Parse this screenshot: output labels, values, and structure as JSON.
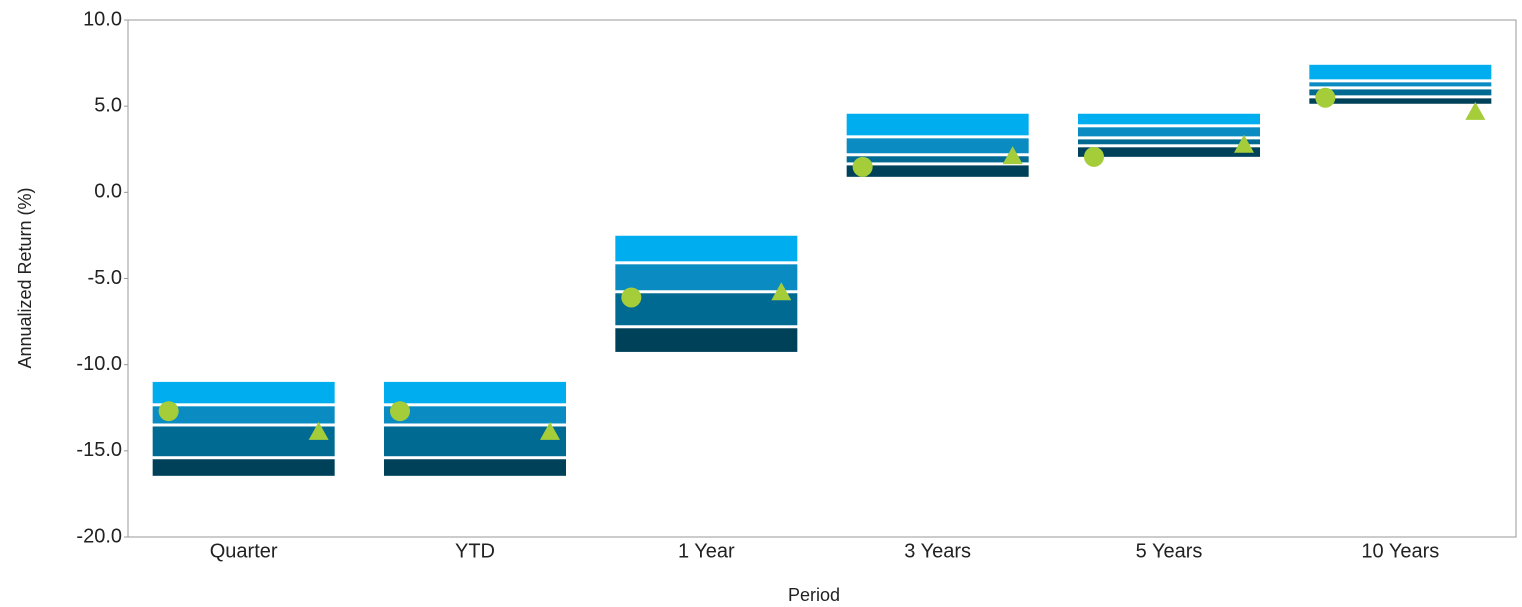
{
  "chart_data": {
    "type": "floating_bar",
    "x_label": "Period",
    "y_label": "Annualized Return (%)",
    "categories": [
      "Quarter",
      "YTD",
      "1 Year",
      "3 Years",
      "5 Years",
      "10 Years"
    ],
    "ranges": {
      "colors": [
        "#00aeef",
        "#0a8cc2",
        "#006a92",
        "#00415a"
      ],
      "values": [
        [
          -11.0,
          -12.33,
          -13.5,
          -15.4,
          -16.45
        ],
        [
          -11.0,
          -12.33,
          -13.5,
          -15.4,
          -16.45
        ],
        [
          -2.52,
          -4.09,
          -5.77,
          -7.8,
          -9.26
        ],
        [
          4.56,
          3.22,
          2.18,
          1.65,
          0.9
        ],
        [
          4.56,
          3.86,
          3.16,
          2.7,
          2.06
        ],
        [
          7.4,
          6.47,
          6.06,
          5.54,
          5.14
        ]
      ]
    },
    "series": [
      {
        "marker": "circle",
        "color": "#a5cd39",
        "values": [
          -12.7,
          -12.7,
          -6.1,
          1.48,
          2.06,
          5.49
        ]
      },
      {
        "marker": "triangle",
        "color": "#a5cd39",
        "values": [
          -13.9,
          -13.9,
          -5.8,
          2.1,
          2.76,
          4.67
        ]
      }
    ],
    "ylim": [
      -20,
      10
    ],
    "yticks": [
      {
        "value": -20,
        "label": "-20.0"
      },
      {
        "value": -15,
        "label": "-15.0"
      },
      {
        "value": -10,
        "label": "-10.0"
      },
      {
        "value": -5,
        "label": "-5.0"
      },
      {
        "value": 0,
        "label": "0.0"
      },
      {
        "value": 5,
        "label": "5.0"
      },
      {
        "value": 10,
        "label": "10.0"
      }
    ]
  }
}
